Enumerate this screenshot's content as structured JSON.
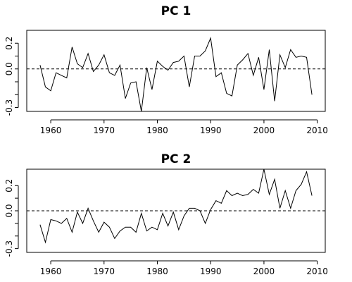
{
  "chart_data": [
    {
      "type": "line",
      "title": "PC 1",
      "xlim": [
        1955.5,
        2011.5
      ],
      "ylim": [
        -0.33,
        0.3
      ],
      "x_ticks": [
        "1960",
        "1970",
        "1980",
        "1990",
        "2000",
        "2010"
      ],
      "y_ticks": [
        "0.2",
        "0.0",
        "-0.3"
      ],
      "zero_line": "dashed",
      "x": [
        1958,
        1959,
        1960,
        1961,
        1962,
        1963,
        1964,
        1965,
        1966,
        1967,
        1968,
        1969,
        1970,
        1971,
        1972,
        1973,
        1974,
        1975,
        1976,
        1977,
        1978,
        1979,
        1980,
        1981,
        1982,
        1983,
        1984,
        1985,
        1986,
        1987,
        1988,
        1989,
        1990,
        1991,
        1992,
        1993,
        1994,
        1995,
        1996,
        1997,
        1998,
        1999,
        2000,
        2001,
        2002,
        2003,
        2004,
        2005,
        2006,
        2007,
        2008,
        2009
      ],
      "values": [
        0.03,
        -0.14,
        -0.17,
        -0.03,
        -0.05,
        -0.07,
        0.17,
        0.04,
        0.01,
        0.12,
        -0.02,
        0.03,
        0.11,
        -0.03,
        -0.05,
        0.03,
        -0.23,
        -0.11,
        -0.1,
        -0.33,
        0.01,
        -0.16,
        0.06,
        0.02,
        -0.01,
        0.05,
        0.06,
        0.1,
        -0.14,
        0.1,
        0.1,
        0.14,
        0.24,
        -0.06,
        -0.03,
        -0.19,
        -0.21,
        0.03,
        0.07,
        0.12,
        -0.05,
        0.09,
        -0.16,
        0.15,
        -0.25,
        0.11,
        0.01,
        0.15,
        0.09,
        0.1,
        0.09,
        -0.2
      ]
    },
    {
      "type": "line",
      "title": "PC 2",
      "xlim": [
        1955.5,
        2011.5
      ],
      "ylim": [
        -0.33,
        0.33
      ],
      "x_ticks": [
        "1960",
        "1970",
        "1980",
        "1990",
        "2000",
        "2010"
      ],
      "y_ticks": [
        "0.2",
        "0.0",
        "-0.3"
      ],
      "zero_line": "dashed",
      "x": [
        1958,
        1959,
        1960,
        1961,
        1962,
        1963,
        1964,
        1965,
        1966,
        1967,
        1968,
        1969,
        1970,
        1971,
        1972,
        1973,
        1974,
        1975,
        1976,
        1977,
        1978,
        1979,
        1980,
        1981,
        1982,
        1983,
        1984,
        1985,
        1986,
        1987,
        1988,
        1989,
        1990,
        1991,
        1992,
        1993,
        1994,
        1995,
        1996,
        1997,
        1998,
        1999,
        2000,
        2001,
        2002,
        2003,
        2004,
        2005,
        2006,
        2007,
        2008,
        2009
      ],
      "values": [
        -0.11,
        -0.25,
        -0.07,
        -0.08,
        -0.1,
        -0.06,
        -0.17,
        -0.01,
        -0.1,
        0.02,
        -0.08,
        -0.17,
        -0.09,
        -0.13,
        -0.22,
        -0.16,
        -0.13,
        -0.13,
        -0.17,
        -0.02,
        -0.16,
        -0.13,
        -0.15,
        -0.02,
        -0.12,
        -0.01,
        -0.15,
        -0.04,
        0.02,
        0.02,
        0.0,
        -0.1,
        0.01,
        0.08,
        0.06,
        0.16,
        0.12,
        0.14,
        0.12,
        0.13,
        0.17,
        0.14,
        0.33,
        0.13,
        0.25,
        0.02,
        0.16,
        0.02,
        0.16,
        0.21,
        0.31,
        0.12
      ]
    }
  ]
}
